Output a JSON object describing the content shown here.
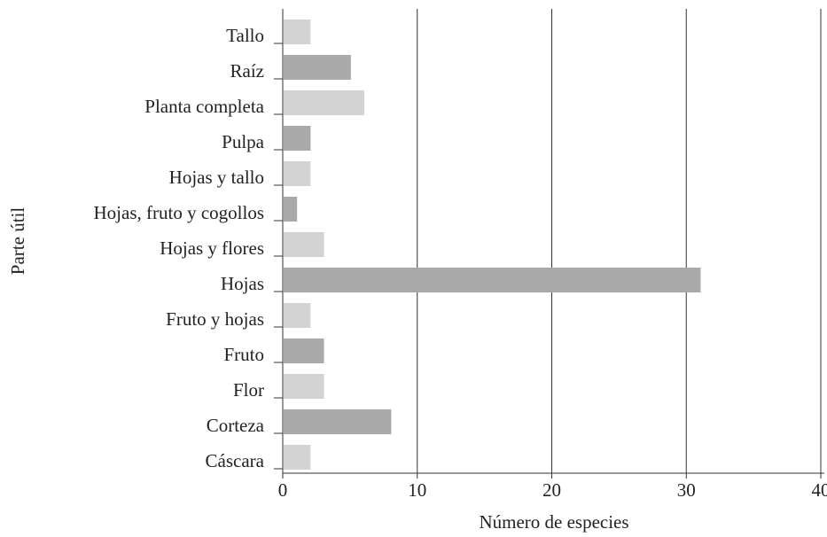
{
  "chart_data": {
    "type": "barh",
    "xlabel": "Número de especies",
    "ylabel": "Parte útil",
    "categories": [
      "Cáscara",
      "Corteza",
      "Flor",
      "Fruto",
      "Fruto y hojas",
      "Hojas",
      "Hojas y flores",
      "Hojas, fruto y cogollos",
      "Hojas y tallo",
      "Pulpa",
      "Planta completa",
      "Raíz",
      "Tallo"
    ],
    "values": [
      2,
      8,
      3,
      3,
      2,
      31,
      3,
      1,
      2,
      2,
      6,
      5,
      2
    ],
    "colors": [
      "#d3d3d3",
      "#a9a9a9",
      "#d3d3d3",
      "#a9a9a9",
      "#d3d3d3",
      "#a9a9a9",
      "#d3d3d3",
      "#a9a9a9",
      "#d3d3d3",
      "#a9a9a9",
      "#d3d3d3",
      "#a9a9a9",
      "#d3d3d3"
    ],
    "xlim": [
      0,
      40
    ],
    "xticks": [
      0,
      10,
      20,
      30,
      40
    ],
    "grid": true
  }
}
